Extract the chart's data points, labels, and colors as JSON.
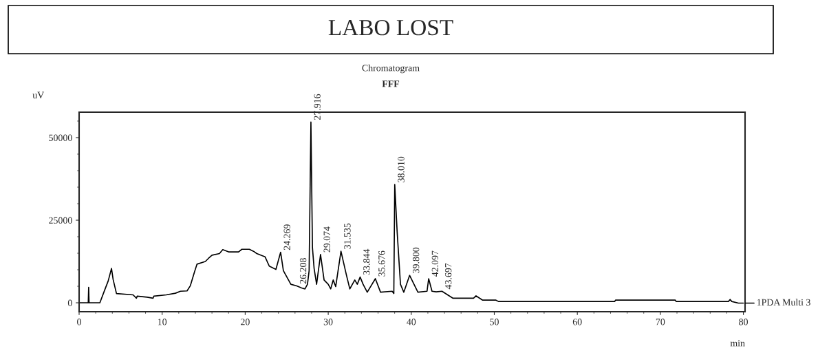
{
  "chart_data": {
    "type": "line",
    "title": "LABO LOST",
    "subtitle": "Chromatogram",
    "xlabel": "min",
    "ylabel": "uV",
    "annotations": [
      "FFF",
      {
        "text": "24.269",
        "x": 24.269,
        "y": 15300
      },
      {
        "text": "26.208",
        "x": 26.208,
        "y": 5100
      },
      {
        "text": "27.916",
        "x": 27.916,
        "y": 54700
      },
      {
        "text": "29.074",
        "x": 29.074,
        "y": 14600
      },
      {
        "text": "31.535",
        "x": 31.535,
        "y": 15600
      },
      {
        "text": "33.844",
        "x": 33.844,
        "y": 7800
      },
      {
        "text": "35.676",
        "x": 35.676,
        "y": 7300
      },
      {
        "text": "38.010",
        "x": 38.01,
        "y": 35800
      },
      {
        "text": "39.800",
        "x": 39.8,
        "y": 8300
      },
      {
        "text": "42.097",
        "x": 42.097,
        "y": 7300
      },
      {
        "text": "43.697",
        "x": 43.697,
        "y": 3500
      }
    ],
    "series": [
      {
        "name": "1PDA Multi 3",
        "color": "#000000",
        "x": [
          0,
          1.1,
          1.15,
          1.2,
          2.5,
          3.1,
          3.5,
          3.9,
          4.1,
          4.5,
          6.5,
          6.9,
          7.0,
          8.2,
          8.9,
          9.0,
          10.5,
          11.6,
          12.2,
          13.0,
          13.4,
          13.9,
          14.2,
          15.2,
          15.6,
          16.0,
          16.9,
          17.3,
          18.0,
          19.2,
          19.6,
          20.5,
          21.0,
          21.4,
          22.4,
          22.9,
          23.7,
          24.269,
          24.6,
          25.5,
          26.208,
          26.8,
          27.2,
          27.5,
          27.7,
          27.916,
          28.1,
          28.3,
          28.6,
          29.074,
          29.5,
          30.0,
          30.3,
          30.6,
          30.9,
          31.535,
          32.2,
          32.6,
          33.2,
          33.5,
          33.844,
          34.2,
          34.7,
          35.676,
          36.3,
          37.7,
          37.9,
          38.01,
          38.3,
          38.7,
          39.1,
          39.8,
          40.8,
          41.9,
          42.097,
          42.5,
          43.0,
          43.697,
          45.0,
          47.5,
          47.8,
          48.6,
          50.2,
          50.5,
          64.5,
          64.6,
          71.8,
          71.9,
          78.2,
          78.4,
          78.6,
          79.4,
          80.0
        ],
        "values": [
          0,
          0,
          4700,
          0,
          0,
          4000,
          6600,
          10400,
          7000,
          2800,
          2400,
          1400,
          2000,
          1700,
          1400,
          2000,
          2400,
          2900,
          3500,
          3600,
          5200,
          9400,
          11700,
          12500,
          13500,
          14400,
          14900,
          16100,
          15400,
          15400,
          16200,
          16200,
          15600,
          14900,
          13900,
          11100,
          10100,
          15300,
          9700,
          5600,
          5100,
          4500,
          4200,
          5600,
          9700,
          54700,
          16700,
          10400,
          5600,
          14600,
          6900,
          5600,
          4200,
          6900,
          4900,
          15600,
          8300,
          4200,
          6900,
          5600,
          7800,
          5600,
          3200,
          7300,
          3200,
          3500,
          2800,
          35800,
          21500,
          5600,
          3200,
          8300,
          3200,
          3500,
          7300,
          3500,
          3300,
          3500,
          1400,
          1400,
          2100,
          800,
          800,
          400,
          400,
          800,
          800,
          400,
          400,
          1000,
          400,
          -100,
          -100
        ]
      }
    ],
    "xlim": [
      0,
      80.2
    ],
    "ylim": [
      -2700,
      57700
    ],
    "xticks": [
      0,
      10,
      20,
      30,
      40,
      50,
      60,
      70,
      80
    ],
    "yticks": [
      0,
      25000,
      50000
    ],
    "grid": false,
    "legend": "right",
    "marker": "none",
    "line_style": "solid"
  }
}
